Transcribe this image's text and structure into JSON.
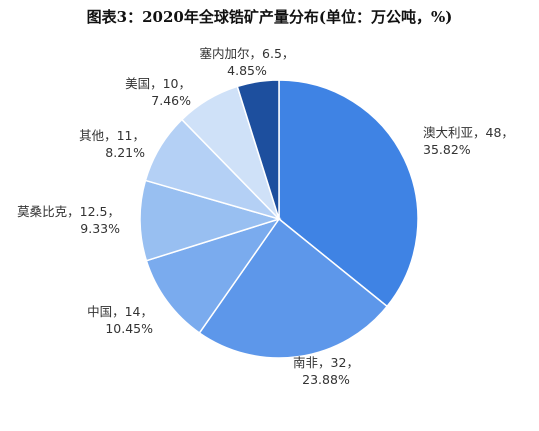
{
  "chart_data": {
    "type": "pie",
    "title": "图表3：2020年全球锆矿产量分布(单位：万公吨，%)",
    "slices": [
      {
        "name": "澳大利亚",
        "value": 48,
        "percent": "35.82%",
        "value_text": "48",
        "color": "#3F83E4"
      },
      {
        "name": "南非",
        "value": 32,
        "percent": "23.88%",
        "value_text": "32",
        "color": "#5D97EA"
      },
      {
        "name": "中国",
        "value": 14,
        "percent": "10.45%",
        "value_text": "14",
        "color": "#7AABEE"
      },
      {
        "name": "莫桑比克",
        "value": 12.5,
        "percent": "9.33%",
        "value_text": "12.5",
        "color": "#98BFF1"
      },
      {
        "name": "其他",
        "value": 11,
        "percent": "8.21%",
        "value_text": "11",
        "color": "#B4D0F5"
      },
      {
        "name": "美国",
        "value": 10,
        "percent": "7.46%",
        "value_text": "10",
        "color": "#CFE1F8"
      },
      {
        "name": "塞内加尔",
        "value": 6.5,
        "percent": "4.85%",
        "value_text": "6.5",
        "color": "#1D4F9E"
      }
    ]
  }
}
